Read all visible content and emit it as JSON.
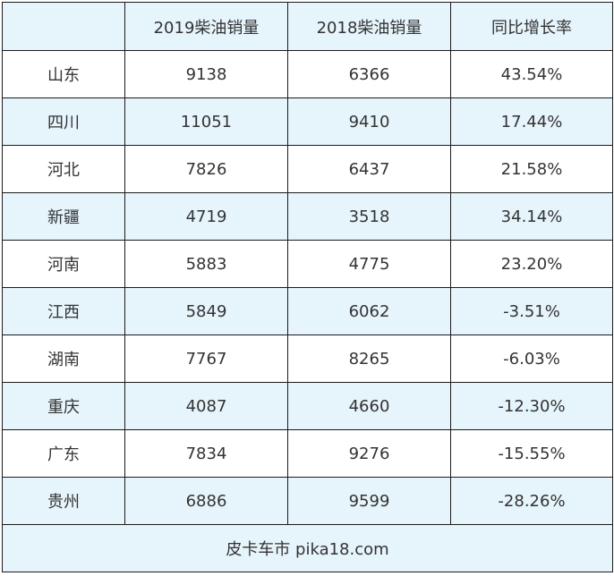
{
  "table": {
    "headers": [
      "",
      "2019柴油销量",
      "2018柴油销量",
      "同比增长率"
    ],
    "rows": [
      [
        "山东",
        "9138",
        "6366",
        "43.54%"
      ],
      [
        "四川",
        "11051",
        "9410",
        "17.44%"
      ],
      [
        "河北",
        "7826",
        "6437",
        "21.58%"
      ],
      [
        "新疆",
        "4719",
        "3518",
        "34.14%"
      ],
      [
        "河南",
        "5883",
        "4775",
        "23.20%"
      ],
      [
        "江西",
        "5849",
        "6062",
        "-3.51%"
      ],
      [
        "湖南",
        "7767",
        "8265",
        "-6.03%"
      ],
      [
        "重庆",
        "4087",
        "4660",
        "-12.30%"
      ],
      [
        "广东",
        "7834",
        "9276",
        "-15.55%"
      ],
      [
        "贵州",
        "6886",
        "9599",
        "-28.26%"
      ]
    ],
    "footer": "皮卡车市 pika18.com"
  },
  "colors": {
    "stripe": "#e6f4fb",
    "border": "#1a1a1a",
    "text": "#333333"
  }
}
